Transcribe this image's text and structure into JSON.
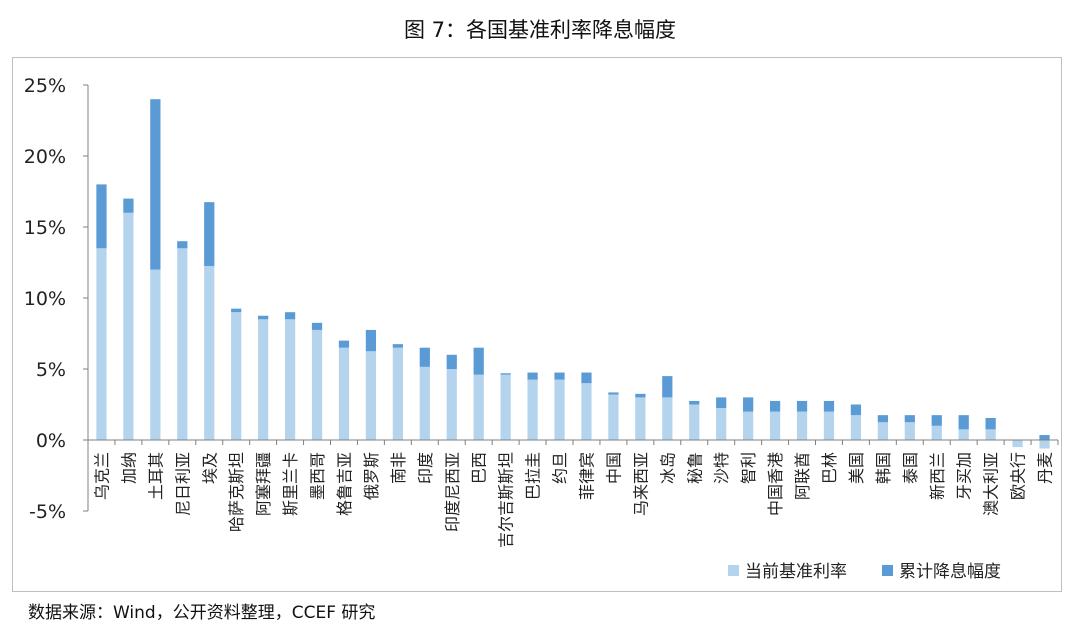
{
  "title": "图 7：各国基准利率降息幅度",
  "source": "数据来源：Wind，公开资料整理，CCEF 研究",
  "colors": {
    "current": "#b4d4ee",
    "cut": "#5b9bd5",
    "axis": "#808080",
    "frame": "#bfbfbf"
  },
  "chart_data": {
    "type": "bar",
    "stacked": true,
    "title": "图 7：各国基准利率降息幅度",
    "ylim": [
      -5,
      25
    ],
    "yticks": [
      -5,
      0,
      5,
      10,
      15,
      20,
      25
    ],
    "ytick_labels": [
      "-5%",
      "0%",
      "5%",
      "10%",
      "15%",
      "20%",
      "25%"
    ],
    "legend_position": "bottom-right",
    "grid": false,
    "categories": [
      "乌克兰",
      "加纳",
      "土耳其",
      "尼日利亚",
      "埃及",
      "哈萨克斯坦",
      "阿塞拜疆",
      "斯里兰卡",
      "墨西哥",
      "格鲁吉亚",
      "俄罗斯",
      "南非",
      "印度",
      "印度尼西亚",
      "巴西",
      "吉尔吉斯斯坦",
      "巴拉圭",
      "约旦",
      "菲律宾",
      "中国",
      "马来西亚",
      "冰岛",
      "秘鲁",
      "沙特",
      "智利",
      "中国香港",
      "阿联酋",
      "巴林",
      "美国",
      "韩国",
      "泰国",
      "新西兰",
      "牙买加",
      "澳大利亚",
      "欧央行",
      "丹麦"
    ],
    "series": [
      {
        "name": "当前基准利率",
        "values": [
          13.5,
          16.0,
          12.0,
          13.5,
          12.25,
          9.0,
          8.5,
          8.5,
          7.75,
          6.5,
          6.25,
          6.5,
          5.15,
          5.0,
          4.6,
          4.6,
          4.25,
          4.25,
          4.0,
          3.2,
          3.0,
          3.0,
          2.5,
          2.25,
          2.0,
          2.0,
          2.0,
          2.0,
          1.75,
          1.25,
          1.25,
          1.0,
          0.75,
          0.75,
          -0.5,
          -0.6
        ]
      },
      {
        "name": "累计降息幅度",
        "values": [
          4.5,
          1.0,
          12.0,
          0.5,
          4.5,
          0.25,
          0.25,
          0.5,
          0.5,
          0.5,
          1.5,
          0.25,
          1.35,
          1.0,
          1.9,
          0.1,
          0.5,
          0.5,
          0.75,
          0.15,
          0.25,
          1.5,
          0.25,
          0.75,
          1.0,
          0.75,
          0.75,
          0.75,
          0.75,
          0.5,
          0.5,
          0.75,
          1.0,
          0.8,
          0.0,
          0.35
        ]
      }
    ]
  }
}
